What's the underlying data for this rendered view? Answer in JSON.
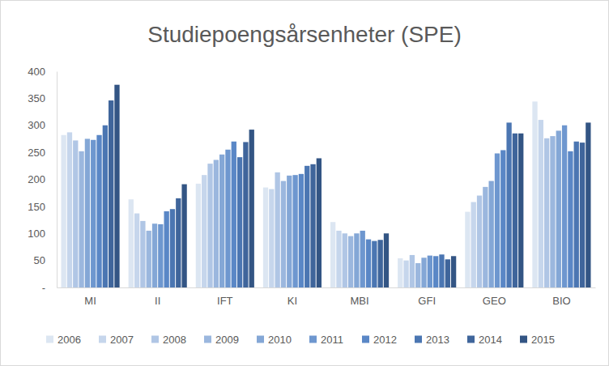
{
  "chart_data": {
    "type": "bar",
    "title": "Studiepoengsårsenheter (SPE)",
    "categories": [
      "MI",
      "II",
      "IFT",
      "KI",
      "MBI",
      "GFI",
      "GEO",
      "BIO"
    ],
    "series": [
      {
        "name": "2006",
        "color": "#dce6f2",
        "values": [
          282,
          163,
          192,
          185,
          121,
          54,
          140,
          344
        ]
      },
      {
        "name": "2007",
        "color": "#c6d6ec",
        "values": [
          287,
          137,
          208,
          182,
          105,
          50,
          158,
          310
        ]
      },
      {
        "name": "2008",
        "color": "#b0c6e5",
        "values": [
          272,
          123,
          229,
          213,
          100,
          60,
          170,
          276
        ]
      },
      {
        "name": "2009",
        "color": "#9bb7de",
        "values": [
          252,
          105,
          236,
          197,
          95,
          45,
          186,
          280
        ]
      },
      {
        "name": "2010",
        "color": "#84a7d6",
        "values": [
          275,
          118,
          246,
          207,
          100,
          55,
          197,
          290
        ]
      },
      {
        "name": "2011",
        "color": "#6e97cf",
        "values": [
          273,
          117,
          255,
          208,
          105,
          59,
          248,
          300
        ]
      },
      {
        "name": "2012",
        "color": "#5a87c6",
        "values": [
          282,
          141,
          270,
          210,
          89,
          58,
          254,
          252
        ]
      },
      {
        "name": "2013",
        "color": "#4b76b2",
        "values": [
          300,
          145,
          241,
          225,
          86,
          61,
          305,
          270
        ]
      },
      {
        "name": "2014",
        "color": "#3f659b",
        "values": [
          346,
          165,
          269,
          228,
          88,
          52,
          285,
          268
        ]
      },
      {
        "name": "2015",
        "color": "#335584",
        "values": [
          375,
          191,
          292,
          239,
          100,
          58,
          285,
          305
        ]
      }
    ],
    "ylim": [
      0,
      400
    ],
    "yticks": [
      {
        "value": 0,
        "label": "-"
      },
      50,
      100,
      150,
      200,
      250,
      300,
      350,
      400
    ],
    "grid": false,
    "legend": "bottom"
  }
}
